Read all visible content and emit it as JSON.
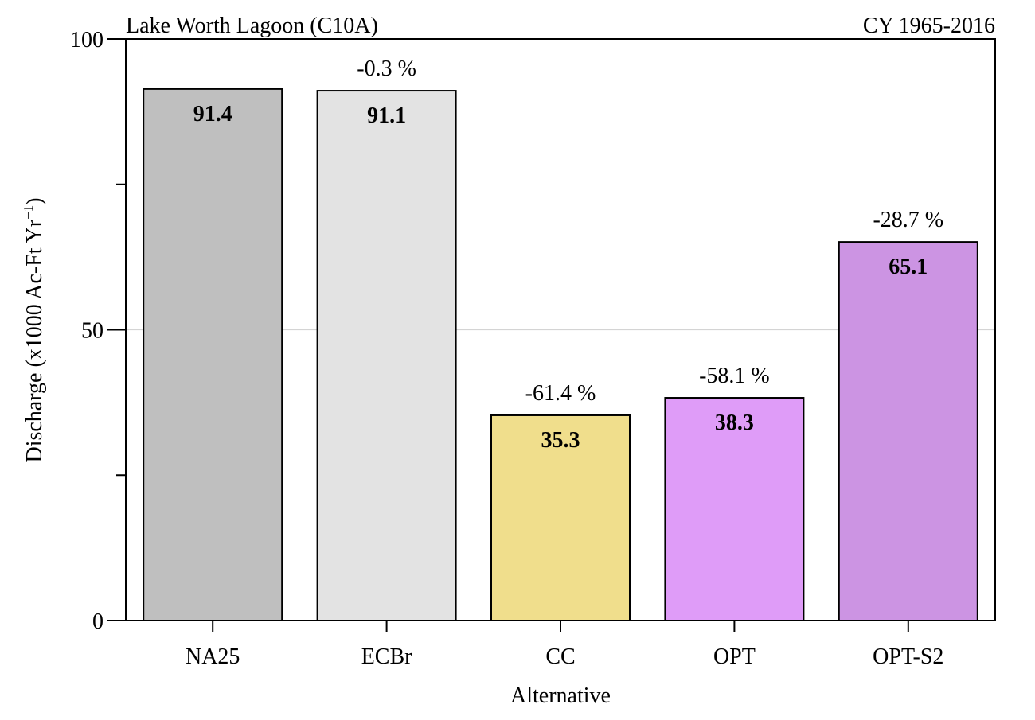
{
  "chart_data": {
    "type": "bar",
    "title_left": "Lake Worth Lagoon (C10A)",
    "title_right": "CY 1965-2016",
    "xlabel": "Alternative",
    "ylabel": "Discharge (x1000 Ac-Ft Yr⁻¹)",
    "ylim": [
      0,
      100
    ],
    "yticks": [
      0,
      50,
      100
    ],
    "y_minor_ticks": [
      25,
      75
    ],
    "gridlines": [
      50
    ],
    "grid": "horizontal at 50",
    "categories": [
      "NA25",
      "ECBr",
      "CC",
      "OPT",
      "OPT-S2"
    ],
    "values": [
      91.4,
      91.1,
      35.3,
      38.3,
      65.1
    ],
    "value_labels": [
      "91.4",
      "91.1",
      "35.3",
      "38.3",
      "65.1"
    ],
    "pct_change_labels": [
      "",
      "-0.3 %",
      "-61.4 %",
      "-58.1 %",
      "-28.7 %"
    ],
    "colors": [
      "#bfbfbf",
      "#e3e3e3",
      "#f0de8c",
      "#df9cf8",
      "#cc94e3"
    ]
  }
}
